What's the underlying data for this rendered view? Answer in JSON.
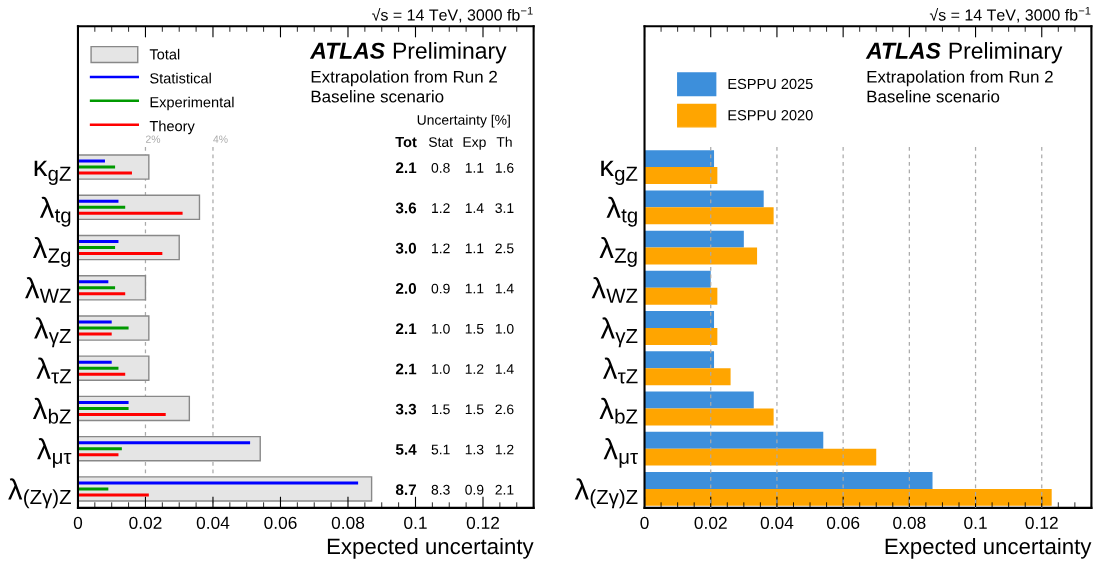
{
  "chart_data": [
    {
      "type": "bar",
      "orientation": "horizontal",
      "title": "√s = 14 TeV, 3000 fb$^{−1}$",
      "xlabel": "Expected uncertainty",
      "categories": [
        "κ$_{gZ}$",
        "λ$_{tg}$",
        "λ$_{Zg}$",
        "λ$_{WZ}$",
        "λ$_{γZ}$",
        "λ$_{τZ}$",
        "λ$_{bZ}$",
        "λ$_{μτ}$",
        "λ$_{(Zγ)Z}$"
      ],
      "series": [
        {
          "name": "Total",
          "type": "bar",
          "color": "#e5e5e5",
          "values": [
            0.021,
            0.036,
            0.03,
            0.02,
            0.021,
            0.021,
            0.033,
            0.054,
            0.087
          ]
        },
        {
          "name": "Statistical",
          "type": "bar",
          "color": "#0000ff",
          "values": [
            0.008,
            0.012,
            0.012,
            0.009,
            0.01,
            0.01,
            0.015,
            0.051,
            0.083
          ]
        },
        {
          "name": "Experimental",
          "type": "bar",
          "color": "#009900",
          "values": [
            0.011,
            0.014,
            0.011,
            0.011,
            0.015,
            0.012,
            0.015,
            0.013,
            0.009
          ]
        },
        {
          "name": "Theory",
          "type": "bar",
          "color": "#ff0000",
          "values": [
            0.016,
            0.031,
            0.025,
            0.014,
            0.01,
            0.014,
            0.026,
            0.012,
            0.021
          ]
        }
      ],
      "xlim": [
        0,
        0.135
      ],
      "xticks": [
        0,
        0.02,
        0.04,
        0.06,
        0.08,
        0.1,
        0.12
      ],
      "ref_lines": [
        {
          "axis": "x",
          "value": 0.02,
          "label": "2%",
          "color": "#aaaaaa",
          "line_style": "dashed"
        },
        {
          "axis": "x",
          "value": 0.04,
          "label": "4%",
          "color": "#aaaaaa",
          "line_style": "dashed"
        }
      ],
      "legend": "top left",
      "annotations": [
        "ATLAS",
        "Preliminary",
        "Extrapolation from Run 2",
        "Baseline scenario",
        "Uncertainty [%]",
        "Tot",
        "Stat",
        "Exp",
        "Th",
        "2.1",
        "0.8",
        "1.1",
        "1.6",
        "3.6",
        "1.2",
        "1.4",
        "3.1",
        "3.0",
        "1.2",
        "1.1",
        "2.5",
        "2.0",
        "0.9",
        "1.1",
        "1.4",
        "2.1",
        "1.0",
        "1.5",
        "1.0",
        "2.1",
        "1.0",
        "1.2",
        "1.4",
        "3.3",
        "1.5",
        "1.5",
        "2.6",
        "5.4",
        "5.1",
        "1.3",
        "1.2",
        "8.7",
        "8.3",
        "0.9",
        "2.1"
      ]
    },
    {
      "type": "bar",
      "orientation": "horizontal",
      "title": "√s = 14 TeV, 3000 fb$^{−1}$",
      "xlabel": "Expected uncertainty",
      "categories": [
        "κ$_{gZ}$",
        "λ$_{tg}$",
        "λ$_{Zg}$",
        "λ$_{WZ}$",
        "λ$_{γZ}$",
        "λ$_{τZ}$",
        "λ$_{bZ}$",
        "λ$_{μτ}$",
        "λ$_{(Zγ)Z}$"
      ],
      "series": [
        {
          "name": "ESPPU 2025",
          "color": "#3d8fdb",
          "values": [
            0.021,
            0.036,
            0.03,
            0.02,
            0.021,
            0.021,
            0.033,
            0.054,
            0.087
          ]
        },
        {
          "name": "ESPPU 2020",
          "color": "#ffa500",
          "values": [
            0.022,
            0.039,
            0.034,
            0.022,
            0.022,
            0.026,
            0.039,
            0.07,
            0.123
          ]
        }
      ],
      "xlim": [
        0,
        0.135
      ],
      "xticks": [
        0,
        0.02,
        0.04,
        0.06,
        0.08,
        0.1,
        0.12
      ],
      "grid": "x",
      "legend": "top left",
      "annotations": [
        "ATLAS",
        "Preliminary",
        "Extrapolation from Run 2",
        "Baseline scenario"
      ]
    }
  ]
}
